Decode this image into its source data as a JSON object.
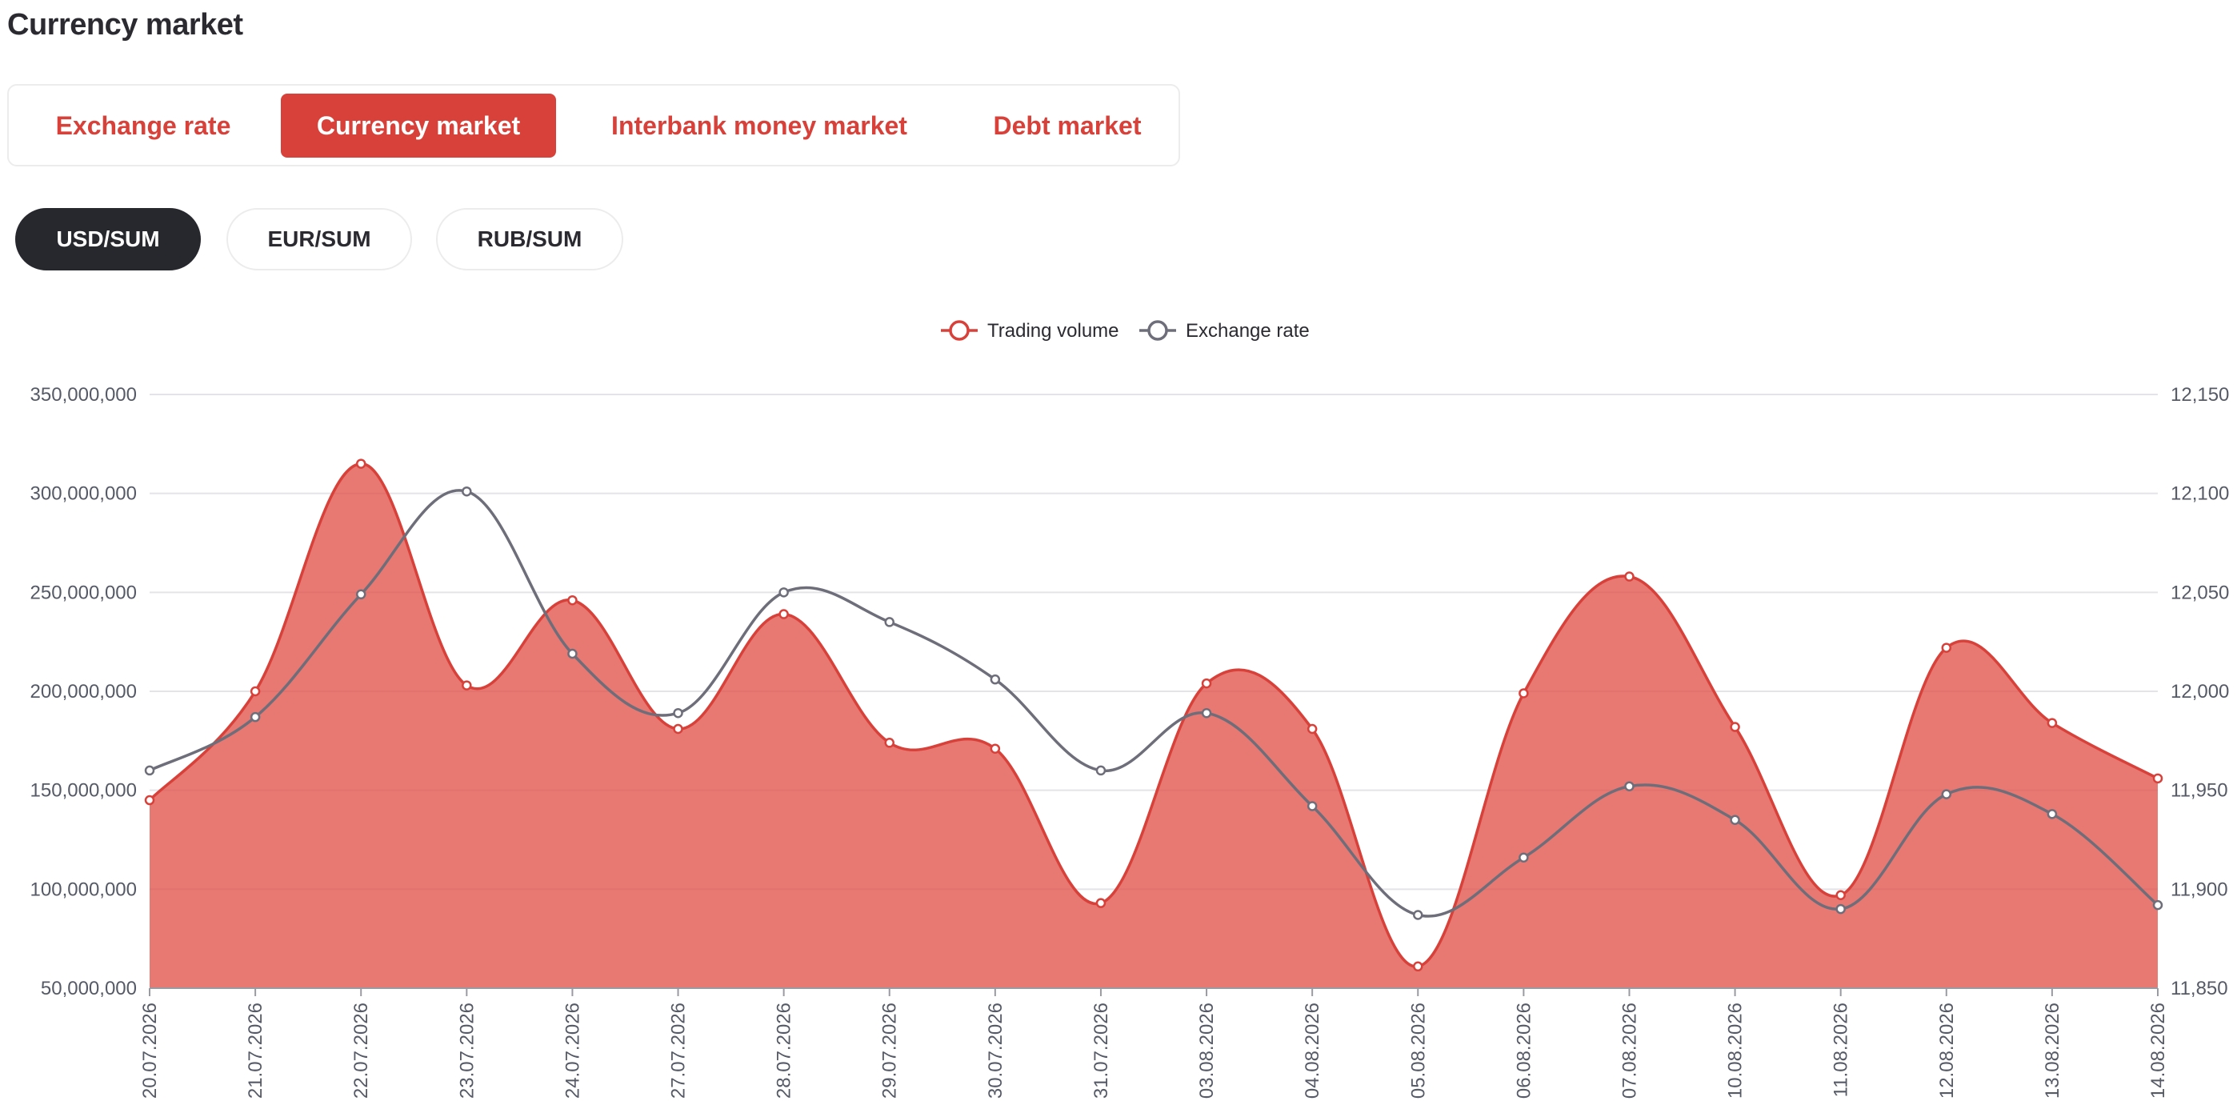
{
  "page": {
    "title": "Currency market"
  },
  "tabs": [
    {
      "label": "Exchange rate",
      "active": false
    },
    {
      "label": "Currency market",
      "active": true
    },
    {
      "label": "Interbank money market",
      "active": false
    },
    {
      "label": "Debt market",
      "active": false
    }
  ],
  "pairs": [
    {
      "label": "USD/SUM",
      "active": true
    },
    {
      "label": "EUR/SUM",
      "active": false
    },
    {
      "label": "RUB/SUM",
      "active": false
    }
  ],
  "colors": {
    "accent": "#d8413a",
    "area_fill": "#e0524a",
    "rate_line": "#6e6e7a",
    "active_pair_bg": "#27272e"
  },
  "chart_data": {
    "type": "area",
    "categories": [
      "20.07.2026",
      "21.07.2026",
      "22.07.2026",
      "23.07.2026",
      "24.07.2026",
      "27.07.2026",
      "28.07.2026",
      "29.07.2026",
      "30.07.2026",
      "31.07.2026",
      "03.08.2026",
      "04.08.2026",
      "05.08.2026",
      "06.08.2026",
      "07.08.2026",
      "10.08.2026",
      "11.08.2026",
      "12.08.2026",
      "13.08.2026",
      "14.08.2026"
    ],
    "series": [
      {
        "name": "Trading volume",
        "type": "area",
        "axis": "left",
        "color": "#d8413a",
        "values": [
          145000000,
          200000000,
          315000000,
          203000000,
          246000000,
          181000000,
          239000000,
          174000000,
          171000000,
          93000000,
          204000000,
          181000000,
          61000000,
          199000000,
          258000000,
          182000000,
          97000000,
          222000000,
          184000000,
          156000000
        ]
      },
      {
        "name": "Exchange rate",
        "type": "line",
        "axis": "right",
        "color": "#6e6e7a",
        "values": [
          11960,
          11987,
          12049,
          12101,
          12019,
          11989,
          12050,
          12035,
          12006,
          11960,
          11989,
          11942,
          11887,
          11916,
          11952,
          11935,
          11890,
          11948,
          11938,
          11892
        ]
      }
    ],
    "y_left": {
      "min": 50000000,
      "max": 350000000,
      "ticks": [
        "50,000,000",
        "100,000,000",
        "150,000,000",
        "200,000,000",
        "250,000,000",
        "300,000,000",
        "350,000,000"
      ]
    },
    "y_right": {
      "min": 11850,
      "max": 12150,
      "ticks": [
        "11,850",
        "11,900",
        "11,950",
        "12,000",
        "12,050",
        "12,100",
        "12,150"
      ]
    },
    "grid": true,
    "legend": "top-center"
  }
}
